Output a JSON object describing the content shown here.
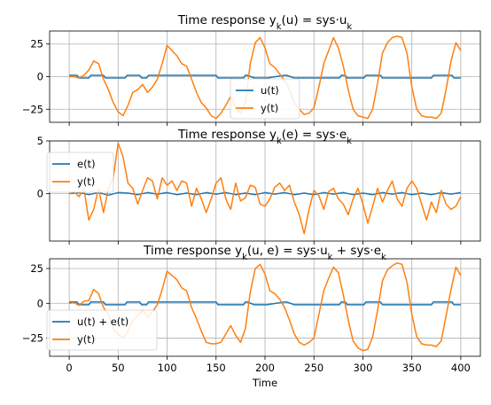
{
  "chart_data": [
    {
      "type": "line",
      "title_main": "Time response y",
      "title_sub": "k",
      "title_rest": "(u) = sys·u",
      "title_end_sub": "k",
      "xlim": [
        -20,
        420
      ],
      "ylim": [
        -35,
        35
      ],
      "yticks": [
        -25,
        0,
        25
      ],
      "grid": true,
      "legend": {
        "placement": "lower-center"
      },
      "series": [
        {
          "name": "u(t)",
          "color": "#1f77b4",
          "x": [
            0,
            8,
            10,
            20,
            22,
            35,
            37,
            45,
            47,
            57,
            59,
            72,
            74,
            79,
            81,
            100,
            102,
            112,
            114,
            150,
            152,
            162,
            164,
            170,
            172,
            178,
            180,
            182,
            189,
            191,
            200,
            202,
            220,
            222,
            230,
            232,
            239,
            241,
            250,
            252,
            274,
            276,
            278,
            282,
            284,
            301,
            303,
            318,
            320,
            340,
            342,
            349,
            351,
            370,
            372,
            391,
            393,
            400
          ],
          "y": [
            1,
            1,
            -1,
            -1,
            1,
            1,
            -1,
            -1,
            -1,
            -1,
            1,
            1,
            -1,
            -1,
            1,
            1,
            1,
            1,
            1,
            1,
            -1,
            -1,
            -1,
            -1,
            -1,
            -1,
            1,
            1,
            -1,
            -1,
            -1,
            -1,
            1,
            1,
            -1,
            -1,
            -1,
            -1,
            -1,
            -1,
            -1,
            -1,
            1,
            1,
            -1,
            -1,
            1,
            1,
            -1,
            -1,
            -1,
            -1,
            -1,
            -1,
            1,
            1,
            -1,
            -1
          ]
        },
        {
          "name": "y(t)",
          "color": "#ff7f0e",
          "x": [
            0,
            5,
            10,
            15,
            20,
            25,
            30,
            35,
            40,
            45,
            50,
            55,
            60,
            65,
            70,
            75,
            80,
            85,
            90,
            95,
            100,
            105,
            110,
            115,
            120,
            125,
            130,
            135,
            140,
            145,
            150,
            155,
            160,
            165,
            170,
            175,
            180,
            185,
            190,
            195,
            200,
            205,
            210,
            215,
            220,
            225,
            230,
            235,
            240,
            245,
            250,
            255,
            260,
            265,
            270,
            275,
            280,
            285,
            290,
            295,
            300,
            305,
            310,
            315,
            320,
            325,
            330,
            335,
            340,
            345,
            350,
            355,
            360,
            365,
            370,
            375,
            380,
            385,
            390,
            395,
            400
          ],
          "y": [
            0,
            0,
            -1,
            1,
            5,
            12,
            10,
            -2,
            -10,
            -20,
            -27,
            -30,
            -22,
            -12,
            -10,
            -6,
            -12,
            -8,
            -2,
            10,
            24,
            20,
            16,
            10,
            8,
            -2,
            -12,
            -20,
            -24,
            -30,
            -32,
            -28,
            -22,
            -15,
            -24,
            -28,
            -20,
            10,
            26,
            30,
            22,
            10,
            7,
            2,
            -3,
            -10,
            -20,
            -25,
            -29,
            -28,
            -24,
            -8,
            10,
            20,
            30,
            22,
            8,
            -10,
            -25,
            -30,
            -31,
            -32,
            -25,
            -5,
            18,
            26,
            30,
            31,
            30,
            18,
            -8,
            -25,
            -30,
            -31,
            -31,
            -32,
            -28,
            -10,
            12,
            26,
            20
          ]
        }
      ]
    },
    {
      "type": "line",
      "title_main": "Time response y",
      "title_sub": "k",
      "title_rest": "(e) = sys·e",
      "title_end_sub": "k",
      "xlim": [
        -20,
        420
      ],
      "ylim": [
        -4.5,
        5
      ],
      "yticks": [
        0,
        5
      ],
      "grid": true,
      "legend": {
        "placement": "upper-left"
      },
      "series": [
        {
          "name": "e(t)",
          "color": "#1f77b4",
          "x": [
            0,
            10,
            20,
            30,
            40,
            50,
            60,
            70,
            80,
            90,
            100,
            110,
            120,
            130,
            140,
            150,
            160,
            170,
            180,
            190,
            200,
            210,
            220,
            230,
            240,
            250,
            260,
            270,
            280,
            290,
            300,
            310,
            320,
            330,
            340,
            350,
            360,
            370,
            380,
            390,
            400
          ],
          "y": [
            0,
            0.1,
            -0.1,
            0.1,
            -0.15,
            0.1,
            0.05,
            -0.1,
            0.1,
            -0.05,
            0.1,
            -0.1,
            0.05,
            -0.1,
            0.1,
            -0.05,
            0.1,
            -0.1,
            0.05,
            -0.1,
            0.1,
            -0.05,
            0.1,
            -0.1,
            0.05,
            -0.1,
            0.1,
            -0.05,
            0.1,
            -0.1,
            0.05,
            -0.1,
            0.1,
            -0.05,
            0.1,
            -0.1,
            0.05,
            -0.1,
            0.1,
            -0.05,
            0.1
          ]
        },
        {
          "name": "y(t)",
          "color": "#ff7f0e",
          "x": [
            0,
            5,
            10,
            15,
            20,
            25,
            30,
            35,
            40,
            45,
            50,
            55,
            60,
            65,
            70,
            75,
            80,
            85,
            90,
            95,
            100,
            105,
            110,
            115,
            120,
            125,
            130,
            135,
            140,
            145,
            150,
            155,
            160,
            165,
            170,
            175,
            180,
            185,
            190,
            195,
            200,
            205,
            210,
            215,
            220,
            225,
            230,
            235,
            240,
            245,
            250,
            255,
            260,
            265,
            270,
            275,
            280,
            285,
            290,
            295,
            300,
            305,
            310,
            315,
            320,
            325,
            330,
            335,
            340,
            345,
            350,
            355,
            360,
            365,
            370,
            375,
            380,
            385,
            390,
            395,
            400
          ],
          "y": [
            0,
            0.2,
            -0.3,
            0.5,
            -2.5,
            -1.5,
            0.5,
            -1.8,
            0.5,
            1.5,
            4.8,
            3.5,
            1,
            0.5,
            -1,
            0.3,
            1.5,
            1.2,
            -0.5,
            1.5,
            0.8,
            1.2,
            0.3,
            1.2,
            1,
            -1.2,
            0.5,
            -0.5,
            -1.8,
            -0.5,
            1,
            1.5,
            -0.5,
            -1.5,
            1,
            -0.7,
            -0.4,
            0.8,
            0.6,
            -1,
            -1.2,
            -0.5,
            0.6,
            1,
            0.3,
            0.8,
            -0.8,
            -2,
            -3.8,
            -1.5,
            0.3,
            -0.2,
            -1.5,
            0.2,
            0.5,
            -0.5,
            -1,
            -2,
            -0.5,
            0.5,
            -1,
            -2.8,
            -1.2,
            0.5,
            -0.8,
            0.3,
            1.2,
            -0.5,
            -1.2,
            0.5,
            1.2,
            0.5,
            -1,
            -2.5,
            -0.8,
            -1.8,
            0.3,
            -1,
            -1.5,
            -1.2,
            -0.3
          ]
        }
      ]
    },
    {
      "type": "line",
      "title_main": "Time response y",
      "title_sub": "k",
      "title_rest": "(u, e) = sys·u",
      "title_mid_sub": "k",
      "title_rest2": " + sys·e",
      "title_end_sub": "k",
      "xlim": [
        -20,
        420
      ],
      "ylim": [
        -38,
        32
      ],
      "yticks": [
        -25,
        0,
        25
      ],
      "xticks": [
        0,
        50,
        100,
        150,
        200,
        250,
        300,
        350,
        400
      ],
      "xlabel": "Time",
      "grid": true,
      "legend": {
        "placement": "lower-left"
      },
      "series": [
        {
          "name": "u(t) + e(t)",
          "color": "#1f77b4",
          "x": [
            0,
            8,
            10,
            20,
            22,
            35,
            37,
            45,
            47,
            57,
            59,
            72,
            74,
            79,
            81,
            100,
            102,
            112,
            114,
            150,
            152,
            162,
            164,
            170,
            172,
            178,
            180,
            182,
            189,
            191,
            200,
            202,
            220,
            222,
            230,
            232,
            239,
            241,
            250,
            252,
            274,
            276,
            278,
            282,
            284,
            301,
            303,
            318,
            320,
            340,
            342,
            349,
            351,
            370,
            372,
            391,
            393,
            400
          ],
          "y": [
            1,
            1,
            -1,
            -1,
            1,
            1,
            -1,
            -1,
            -1,
            -1,
            1,
            1,
            -1,
            -1,
            1,
            1,
            1,
            1,
            1,
            1,
            -1,
            -1,
            -1,
            -1,
            -1,
            -1,
            1,
            1,
            -1,
            -1,
            -1,
            -1,
            1,
            1,
            -1,
            -1,
            -1,
            -1,
            -1,
            -1,
            -1,
            -1,
            1,
            1,
            -1,
            -1,
            1,
            1,
            -1,
            -1,
            -1,
            -1,
            -1,
            -1,
            1,
            1,
            -1,
            -1
          ]
        },
        {
          "name": "y(t)",
          "color": "#ff7f0e",
          "x": [
            0,
            5,
            10,
            15,
            20,
            25,
            30,
            35,
            40,
            45,
            50,
            55,
            60,
            65,
            70,
            75,
            80,
            85,
            90,
            95,
            100,
            105,
            110,
            115,
            120,
            125,
            130,
            135,
            140,
            145,
            150,
            155,
            160,
            165,
            170,
            175,
            180,
            185,
            190,
            195,
            200,
            205,
            210,
            215,
            220,
            225,
            230,
            235,
            240,
            245,
            250,
            255,
            260,
            265,
            270,
            275,
            280,
            285,
            290,
            295,
            300,
            305,
            310,
            315,
            320,
            325,
            330,
            335,
            340,
            345,
            350,
            355,
            360,
            365,
            370,
            375,
            380,
            385,
            390,
            395,
            400
          ],
          "y": [
            0,
            0.5,
            -1.5,
            1.5,
            2,
            10,
            7,
            -3,
            -8,
            -18,
            -22,
            -25,
            -20,
            -12,
            -9,
            -5,
            -10,
            -6,
            -1,
            10,
            23,
            20,
            17,
            11,
            9,
            -3,
            -11,
            -20,
            -28,
            -29,
            -29,
            -28,
            -22,
            -16,
            -23,
            -28,
            -18,
            8,
            25,
            28,
            21,
            9,
            7,
            3,
            -3,
            -12,
            -22,
            -28,
            -30,
            -28,
            -25,
            -8,
            9,
            18,
            26,
            22,
            6,
            -12,
            -27,
            -32,
            -34,
            -33,
            -24,
            -5,
            16,
            24,
            27,
            29,
            28,
            15,
            -8,
            -24,
            -29,
            -30,
            -30,
            -31,
            -27,
            -9,
            10,
            26,
            20
          ]
        }
      ]
    }
  ]
}
